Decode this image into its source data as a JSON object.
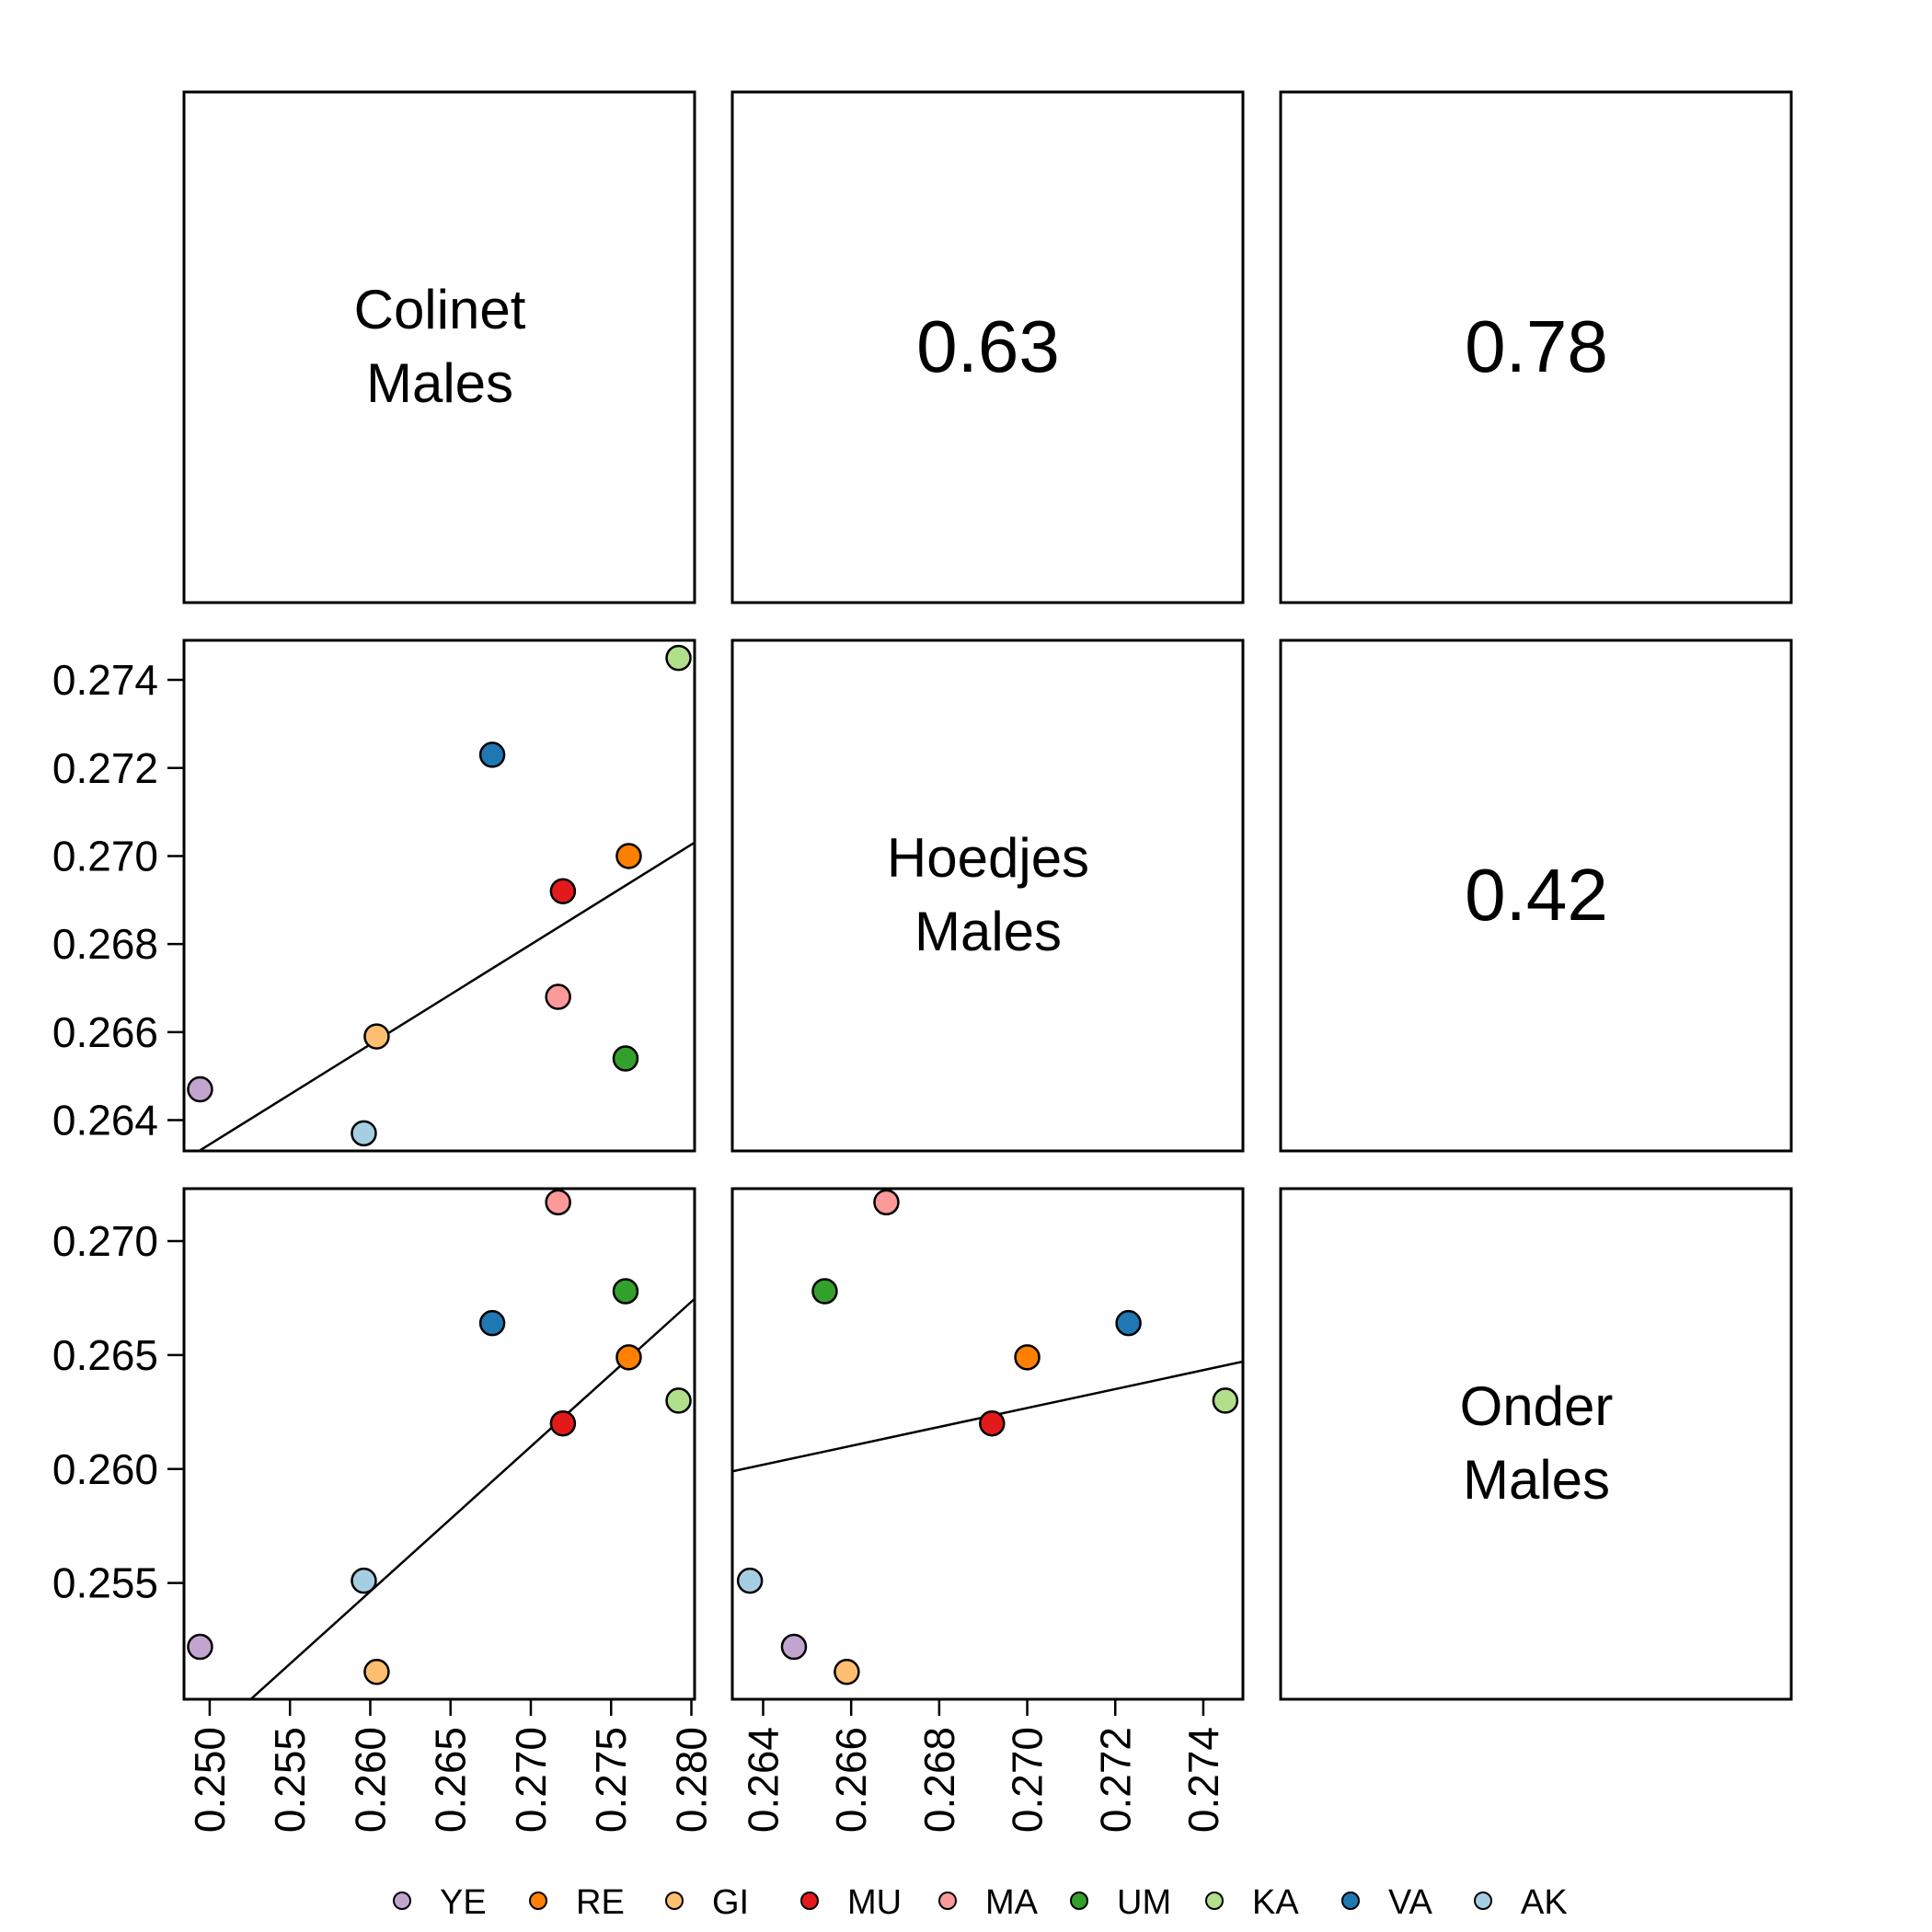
{
  "groups": [
    {
      "code": "YE",
      "color": "#C2A5CF"
    },
    {
      "code": "RE",
      "color": "#FF7F00"
    },
    {
      "code": "GI",
      "color": "#FDBF6F"
    },
    {
      "code": "MU",
      "color": "#E31A1C"
    },
    {
      "code": "MA",
      "color": "#FB9A99"
    },
    {
      "code": "UM",
      "color": "#33A02C"
    },
    {
      "code": "KA",
      "color": "#B2DF8A"
    },
    {
      "code": "VA",
      "color": "#1F78B4"
    },
    {
      "code": "AK",
      "color": "#A6CEE3"
    }
  ],
  "chart_data": {
    "type": "scatter",
    "layout": "pairs-matrix",
    "variables": [
      {
        "key": "colinet",
        "label": [
          "Colinet",
          "Males"
        ]
      },
      {
        "key": "hoedjes",
        "label": [
          "Hoedjes",
          "Males"
        ]
      },
      {
        "key": "onder",
        "label": [
          "Onder",
          "Males"
        ]
      }
    ],
    "correlations": [
      {
        "vars": [
          "colinet",
          "hoedjes"
        ],
        "value": "0.63"
      },
      {
        "vars": [
          "colinet",
          "onder"
        ],
        "value": "0.78"
      },
      {
        "vars": [
          "hoedjes",
          "onder"
        ],
        "value": "0.42"
      }
    ],
    "points": {
      "YE": {
        "colinet": 0.2494,
        "hoedjes": 0.2647,
        "onder": 0.2522
      },
      "RE": {
        "colinet": 0.2761,
        "hoedjes": 0.27,
        "onder": 0.2649
      },
      "GI": {
        "colinet": 0.2604,
        "hoedjes": 0.2659,
        "onder": 0.2511
      },
      "MU": {
        "colinet": 0.272,
        "hoedjes": 0.2692,
        "onder": 0.262
      },
      "MA": {
        "colinet": 0.2717,
        "hoedjes": 0.2668,
        "onder": 0.2717
      },
      "UM": {
        "colinet": 0.2759,
        "hoedjes": 0.2654,
        "onder": 0.2678
      },
      "KA": {
        "colinet": 0.2792,
        "hoedjes": 0.2745,
        "onder": 0.263
      },
      "VA": {
        "colinet": 0.2676,
        "hoedjes": 0.2723,
        "onder": 0.2664
      },
      "AK": {
        "colinet": 0.2596,
        "hoedjes": 0.2637,
        "onder": 0.2551
      }
    },
    "axes": {
      "colinet": {
        "range": [
          0.2484,
          0.2802
        ],
        "ticks": [
          "0.250",
          "0.255",
          "0.260",
          "0.265",
          "0.270",
          "0.275",
          "0.280"
        ]
      },
      "hoedjes": {
        "range": [
          0.2633,
          0.2749
        ],
        "ticks": [
          "0.264",
          "0.266",
          "0.268",
          "0.270",
          "0.272",
          "0.274"
        ]
      },
      "onder": {
        "range": [
          0.2499,
          0.2723
        ],
        "ticks": [
          "0.255",
          "0.260",
          "0.265",
          "0.270"
        ]
      }
    },
    "fit_lines": [
      {
        "x": "colinet",
        "y": "hoedjes",
        "intercept": 0.2067,
        "slope": 0.227
      },
      {
        "x": "colinet",
        "y": "onder",
        "intercept": 0.0894,
        "slope": 0.6355
      },
      {
        "x": "hoedjes",
        "y": "onder",
        "intercept": 0.1506,
        "slope": 0.4151
      }
    ],
    "legend": {
      "position": "bottom",
      "marker": "filled-circle"
    }
  }
}
